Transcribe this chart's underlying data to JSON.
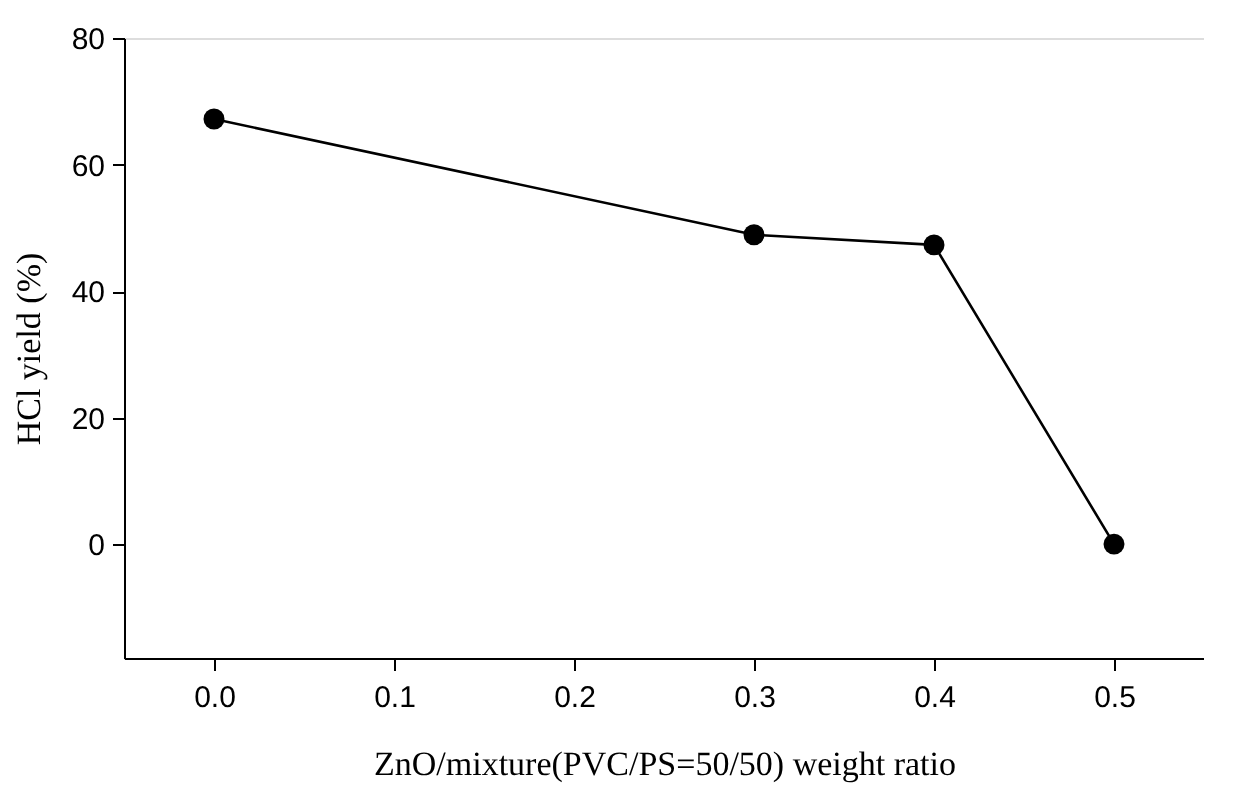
{
  "chart_data": {
    "type": "line",
    "xlabel": "ZnO/mixture(PVC/PS=50/50) weight ratio",
    "ylabel": "HCl yield (%)",
    "x": [
      0.0,
      0.3,
      0.4,
      0.5
    ],
    "series": [
      {
        "color": "#000000",
        "values": [
          67.2,
          48.9,
          47.3,
          0
        ]
      }
    ],
    "xlim": [
      -0.05,
      0.55
    ],
    "ylim": [
      -18,
      80
    ],
    "xticks": [
      {
        "value": 0,
        "label": "0.0"
      },
      0.1,
      0.2,
      0.3,
      0.4,
      0.5
    ],
    "yticks": [
      0,
      20,
      40,
      60,
      80
    ],
    "marker": "circle",
    "line_style": "solid",
    "grid": false,
    "legend": false
  }
}
